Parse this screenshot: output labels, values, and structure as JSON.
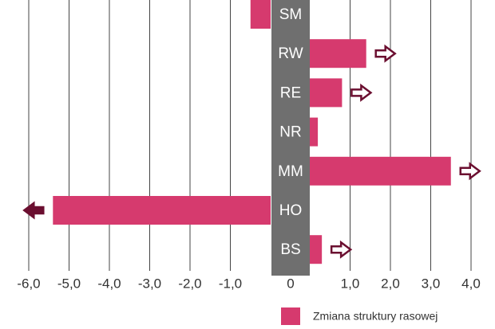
{
  "chart_data": {
    "type": "bar",
    "orientation": "horizontal",
    "categories": [
      "SM",
      "RW",
      "RE",
      "NR",
      "MM",
      "HO",
      "BS"
    ],
    "series": [
      {
        "name": "Zmiana struktury rasowej",
        "color": "#d63a6e",
        "values": [
          -0.5,
          1.4,
          0.8,
          0.2,
          3.5,
          -5.4,
          0.3
        ]
      }
    ],
    "xlim": [
      -6,
      4
    ],
    "xticks": [
      {
        "value": -6,
        "label": "-6,0"
      },
      {
        "value": -5,
        "label": "-5,0"
      },
      {
        "value": -4,
        "label": "-4,0"
      },
      {
        "value": -3,
        "label": "-3,0"
      },
      {
        "value": -2,
        "label": "-2,0"
      },
      {
        "value": -1,
        "label": "-1,0"
      },
      0,
      {
        "value": 1,
        "label": "1,0"
      },
      {
        "value": 2,
        "label": "2,0"
      },
      {
        "value": 3,
        "label": "3,0"
      },
      {
        "value": 4,
        "label": "4,0"
      }
    ],
    "grid": true
  }
}
